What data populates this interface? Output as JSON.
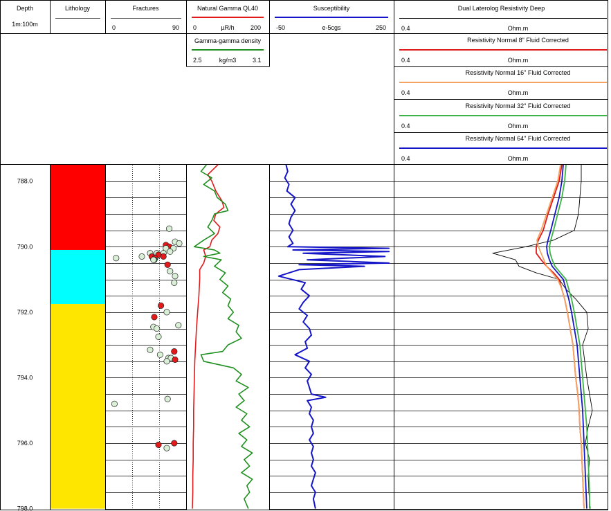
{
  "header": {
    "depth": {
      "title": "Depth",
      "scale": "1m:100m"
    },
    "lithology": {
      "title": "Lithology"
    },
    "fractures": {
      "title": "Fractures",
      "min": "0",
      "max": "90"
    },
    "gamma": {
      "title": "Natural Gamma QL40",
      "min": "0",
      "unit": "µR/h",
      "max": "200",
      "color": "#e11b1b"
    },
    "density": {
      "title": "Gamma-gamma density",
      "min": "2.5",
      "unit": "kg/m3",
      "max": "3.1",
      "color": "#1f8f1f"
    },
    "susceptibility": {
      "title": "Susceptibility",
      "min": "-50",
      "unit": "e-5cgs",
      "max": "250",
      "color": "#1515c8"
    },
    "resistivity": [
      {
        "title": "Dual Laterolog Resistivity Deep",
        "min": "0.4",
        "unit": "Ohm.m",
        "color": "#000000"
      },
      {
        "title": "Resistivity Normal 8\" Fluid Corrected",
        "min": "0.4",
        "unit": "Ohm.m",
        "color": "#e11b1b"
      },
      {
        "title": "Resistivity Normal 16\" Fluid Corrected",
        "min": "0.4",
        "unit": "Ohm.m",
        "color": "#f4a460"
      },
      {
        "title": "Resistivity Normal 32\" Fluid Corrected",
        "min": "0.4",
        "unit": "Ohm.m",
        "color": "#3cb34a"
      },
      {
        "title": "Resistivity Normal 64\" Fluid Corrected",
        "min": "0.4",
        "unit": "Ohm.m",
        "color": "#1515c8"
      }
    ]
  },
  "chart_data": {
    "type": "well-log",
    "depth_range": [
      787.5,
      798.0
    ],
    "depth_ticks": [
      "788.0",
      "790.0",
      "792.0",
      "794.0",
      "796.0",
      "798.0"
    ],
    "lithology": [
      {
        "top": 787.5,
        "bottom": 790.1,
        "color": "#ff0000"
      },
      {
        "top": 790.1,
        "bottom": 791.75,
        "color": "#00ffff"
      },
      {
        "top": 791.75,
        "bottom": 798.0,
        "color": "#ffe600"
      }
    ],
    "fractures": {
      "range": [
        0,
        90
      ],
      "points": [
        {
          "d": 789.45,
          "a": 73,
          "c": "#d9f0d6"
        },
        {
          "d": 789.85,
          "a": 80,
          "c": "#d9f0d6"
        },
        {
          "d": 789.9,
          "a": 85,
          "c": "#d9f0d6"
        },
        {
          "d": 789.95,
          "a": 69,
          "c": "#e41a1a"
        },
        {
          "d": 790.0,
          "a": 73,
          "c": "#e41a1a"
        },
        {
          "d": 790.05,
          "a": 78,
          "c": "#d9f0d6"
        },
        {
          "d": 790.05,
          "a": 69,
          "c": "#d9f0d6"
        },
        {
          "d": 790.15,
          "a": 74,
          "c": "#d9f0d6"
        },
        {
          "d": 790.2,
          "a": 50,
          "c": "#d9f0d6"
        },
        {
          "d": 790.2,
          "a": 58,
          "c": "#d9f0d6"
        },
        {
          "d": 790.2,
          "a": 66,
          "c": "#d9f0d6"
        },
        {
          "d": 790.25,
          "a": 60,
          "c": "#e41a1a"
        },
        {
          "d": 790.3,
          "a": 66,
          "c": "#e41a1a"
        },
        {
          "d": 790.3,
          "a": 40,
          "c": "#d9f0d6"
        },
        {
          "d": 790.3,
          "a": 52,
          "c": "#e41a1a"
        },
        {
          "d": 790.35,
          "a": 56,
          "c": "#e41a1a"
        },
        {
          "d": 790.4,
          "a": 55,
          "c": "#2e8b57"
        },
        {
          "d": 790.4,
          "a": 54,
          "c": "#d9f0d6"
        },
        {
          "d": 790.35,
          "a": 9,
          "c": "#d9f0d6"
        },
        {
          "d": 790.55,
          "a": 71,
          "c": "#e41a1a"
        },
        {
          "d": 790.75,
          "a": 74,
          "c": "#d9f0d6"
        },
        {
          "d": 790.9,
          "a": 80,
          "c": "#d9f0d6"
        },
        {
          "d": 791.1,
          "a": 79,
          "c": "#d9f0d6"
        },
        {
          "d": 791.8,
          "a": 63,
          "c": "#e41a1a"
        },
        {
          "d": 792.0,
          "a": 70,
          "c": "#d9f0d6"
        },
        {
          "d": 792.15,
          "a": 55,
          "c": "#e41a1a"
        },
        {
          "d": 792.4,
          "a": 84,
          "c": "#d9f0d6"
        },
        {
          "d": 792.45,
          "a": 54,
          "c": "#d9f0d6"
        },
        {
          "d": 792.5,
          "a": 58,
          "c": "#d9f0d6"
        },
        {
          "d": 792.75,
          "a": 60,
          "c": "#d9f0d6"
        },
        {
          "d": 793.15,
          "a": 50,
          "c": "#d9f0d6"
        },
        {
          "d": 793.2,
          "a": 79,
          "c": "#e41a1a"
        },
        {
          "d": 793.3,
          "a": 62,
          "c": "#d9f0d6"
        },
        {
          "d": 793.4,
          "a": 72,
          "c": "#d9f0d6"
        },
        {
          "d": 793.4,
          "a": 75,
          "c": "#d9f0d6"
        },
        {
          "d": 793.45,
          "a": 80,
          "c": "#e41a1a"
        },
        {
          "d": 793.5,
          "a": 70,
          "c": "#d9f0d6"
        },
        {
          "d": 794.65,
          "a": 71,
          "c": "#d9f0d6"
        },
        {
          "d": 794.8,
          "a": 7,
          "c": "#d9f0d6"
        },
        {
          "d": 796.0,
          "a": 79,
          "c": "#e41a1a"
        },
        {
          "d": 796.05,
          "a": 60,
          "c": "#e41a1a"
        },
        {
          "d": 796.15,
          "a": 70,
          "c": "#d9f0d6"
        }
      ]
    },
    "gamma": {
      "range": [
        0,
        200
      ],
      "depth": [
        787.5,
        787.8,
        788.0,
        788.3,
        788.6,
        788.8,
        789.0,
        789.2,
        789.4,
        789.6,
        789.8,
        790.0,
        790.1,
        790.3,
        790.5,
        790.7,
        791.0,
        791.5,
        792.0,
        792.5,
        793.0,
        793.5,
        794.0,
        794.5,
        795.0,
        795.5,
        796.0,
        796.5,
        797.0,
        797.5,
        798.0
      ],
      "values": [
        75,
        50,
        60,
        70,
        85,
        90,
        70,
        65,
        80,
        75,
        60,
        55,
        40,
        45,
        40,
        30,
        30,
        28,
        25,
        22,
        20,
        18,
        17,
        16,
        15,
        15,
        14,
        14,
        13,
        13,
        12
      ]
    },
    "density": {
      "range": [
        2.5,
        3.1
      ],
      "depth": [
        787.5,
        787.7,
        787.9,
        788.1,
        788.3,
        788.5,
        788.7,
        788.9,
        789.0,
        789.2,
        789.4,
        789.6,
        789.8,
        790.0,
        790.1,
        790.2,
        790.3,
        790.4,
        790.6,
        790.8,
        791.0,
        791.2,
        791.4,
        791.6,
        791.8,
        792.0,
        792.2,
        792.4,
        792.6,
        792.8,
        793.0,
        793.2,
        793.3,
        793.5,
        793.7,
        793.9,
        794.1,
        794.3,
        794.5,
        794.7,
        794.9,
        795.1,
        795.3,
        795.5,
        795.7,
        795.9,
        796.1,
        796.3,
        796.5,
        796.7,
        796.9,
        797.1,
        797.3,
        797.5,
        797.7,
        798.0
      ],
      "values": [
        2.64,
        2.6,
        2.68,
        2.62,
        2.7,
        2.72,
        2.78,
        2.8,
        2.7,
        2.68,
        2.65,
        2.7,
        2.62,
        2.55,
        2.7,
        2.74,
        2.62,
        2.75,
        2.7,
        2.78,
        2.74,
        2.8,
        2.76,
        2.82,
        2.8,
        2.84,
        2.8,
        2.88,
        2.86,
        2.9,
        2.8,
        2.76,
        2.6,
        2.62,
        2.84,
        2.9,
        2.86,
        2.95,
        2.88,
        2.92,
        2.86,
        2.94,
        2.9,
        2.96,
        2.88,
        2.94,
        2.9,
        2.98,
        2.92,
        2.96,
        2.9,
        2.98,
        2.94,
        2.96,
        2.92,
        2.95
      ]
    },
    "susceptibility": {
      "range": [
        -50,
        250
      ],
      "depth": [
        787.5,
        787.7,
        787.9,
        788.1,
        788.3,
        788.5,
        788.7,
        788.9,
        789.1,
        789.3,
        789.5,
        789.7,
        789.9,
        790.0,
        790.05,
        790.1,
        790.15,
        790.2,
        790.3,
        790.4,
        790.5,
        790.55,
        790.6,
        790.7,
        790.9,
        791.1,
        791.3,
        791.5,
        791.7,
        791.9,
        792.1,
        792.3,
        792.5,
        792.7,
        792.9,
        793.1,
        793.3,
        793.5,
        793.7,
        793.9,
        794.1,
        794.3,
        794.5,
        794.6,
        794.7,
        794.9,
        795.1,
        795.3,
        795.5,
        795.7,
        795.9,
        796.1,
        796.3,
        796.5,
        796.7,
        796.9,
        797.1,
        797.3,
        797.5,
        797.7,
        798.0
      ],
      "values": [
        -12,
        -8,
        -15,
        -5,
        -10,
        10,
        0,
        10,
        0,
        -5,
        5,
        -5,
        5,
        -8,
        240,
        5,
        240,
        30,
        230,
        40,
        240,
        20,
        180,
        20,
        -30,
        35,
        25,
        45,
        30,
        20,
        40,
        30,
        45,
        50,
        35,
        40,
        10,
        45,
        35,
        50,
        40,
        45,
        50,
        85,
        40,
        50,
        45,
        55,
        50,
        55,
        45,
        55,
        50,
        55,
        50,
        60,
        55,
        50,
        60,
        55,
        60
      ]
    },
    "resistivity": {
      "depth": [
        787.5,
        788.0,
        788.5,
        789.0,
        789.5,
        789.8,
        790.0,
        790.2,
        790.4,
        790.6,
        790.8,
        791.0,
        791.3,
        791.6,
        792.0,
        792.5,
        793.0,
        793.5,
        794.0,
        794.5,
        795.0,
        795.5,
        796.0,
        796.5,
        797.0,
        797.5,
        798.0
      ],
      "series": [
        {
          "name": "Dual Laterolog Resistivity Deep",
          "color": "#000000",
          "x": [
            840,
            840,
            838,
            836,
            830,
            800,
            760,
            712,
            745,
            750,
            775,
            808,
            818,
            832,
            848,
            850,
            842,
            845,
            848,
            852,
            856,
            850,
            846,
            852,
            850,
            851,
            853
          ]
        },
        {
          "name": "Resistivity Normal 8\" Fluid Corrected",
          "color": "#e11b1b",
          "x": [
            812,
            808,
            800,
            792,
            785,
            778,
            775,
            775,
            782,
            790,
            800,
            808,
            812,
            816,
            820,
            824,
            828,
            830,
            832,
            835,
            837,
            838,
            840,
            841,
            842,
            843,
            844
          ]
        },
        {
          "name": "Resistivity Normal 16\" Fluid Corrected",
          "color": "#f4a460",
          "x": [
            810,
            806,
            798,
            790,
            782,
            776,
            778,
            782,
            786,
            790,
            798,
            806,
            812,
            816,
            820,
            824,
            828,
            830,
            832,
            835,
            837,
            838,
            840,
            841,
            842,
            843,
            844
          ]
        },
        {
          "name": "Resistivity Normal 32\" Fluid Corrected",
          "color": "#3cb34a",
          "x": [
            818,
            816,
            812,
            806,
            800,
            796,
            794,
            795,
            798,
            802,
            810,
            818,
            822,
            826,
            830,
            834,
            838,
            840,
            842,
            844,
            846,
            848,
            849,
            850,
            851,
            852,
            852
          ]
        },
        {
          "name": "Resistivity Normal 64\" Fluid Corrected",
          "color": "#1515c8",
          "x": [
            814,
            812,
            808,
            802,
            796,
            792,
            790,
            791,
            794,
            798,
            806,
            814,
            818,
            822,
            826,
            830,
            834,
            836,
            838,
            840,
            842,
            843,
            844,
            845,
            846,
            847,
            848
          ]
        }
      ]
    }
  }
}
